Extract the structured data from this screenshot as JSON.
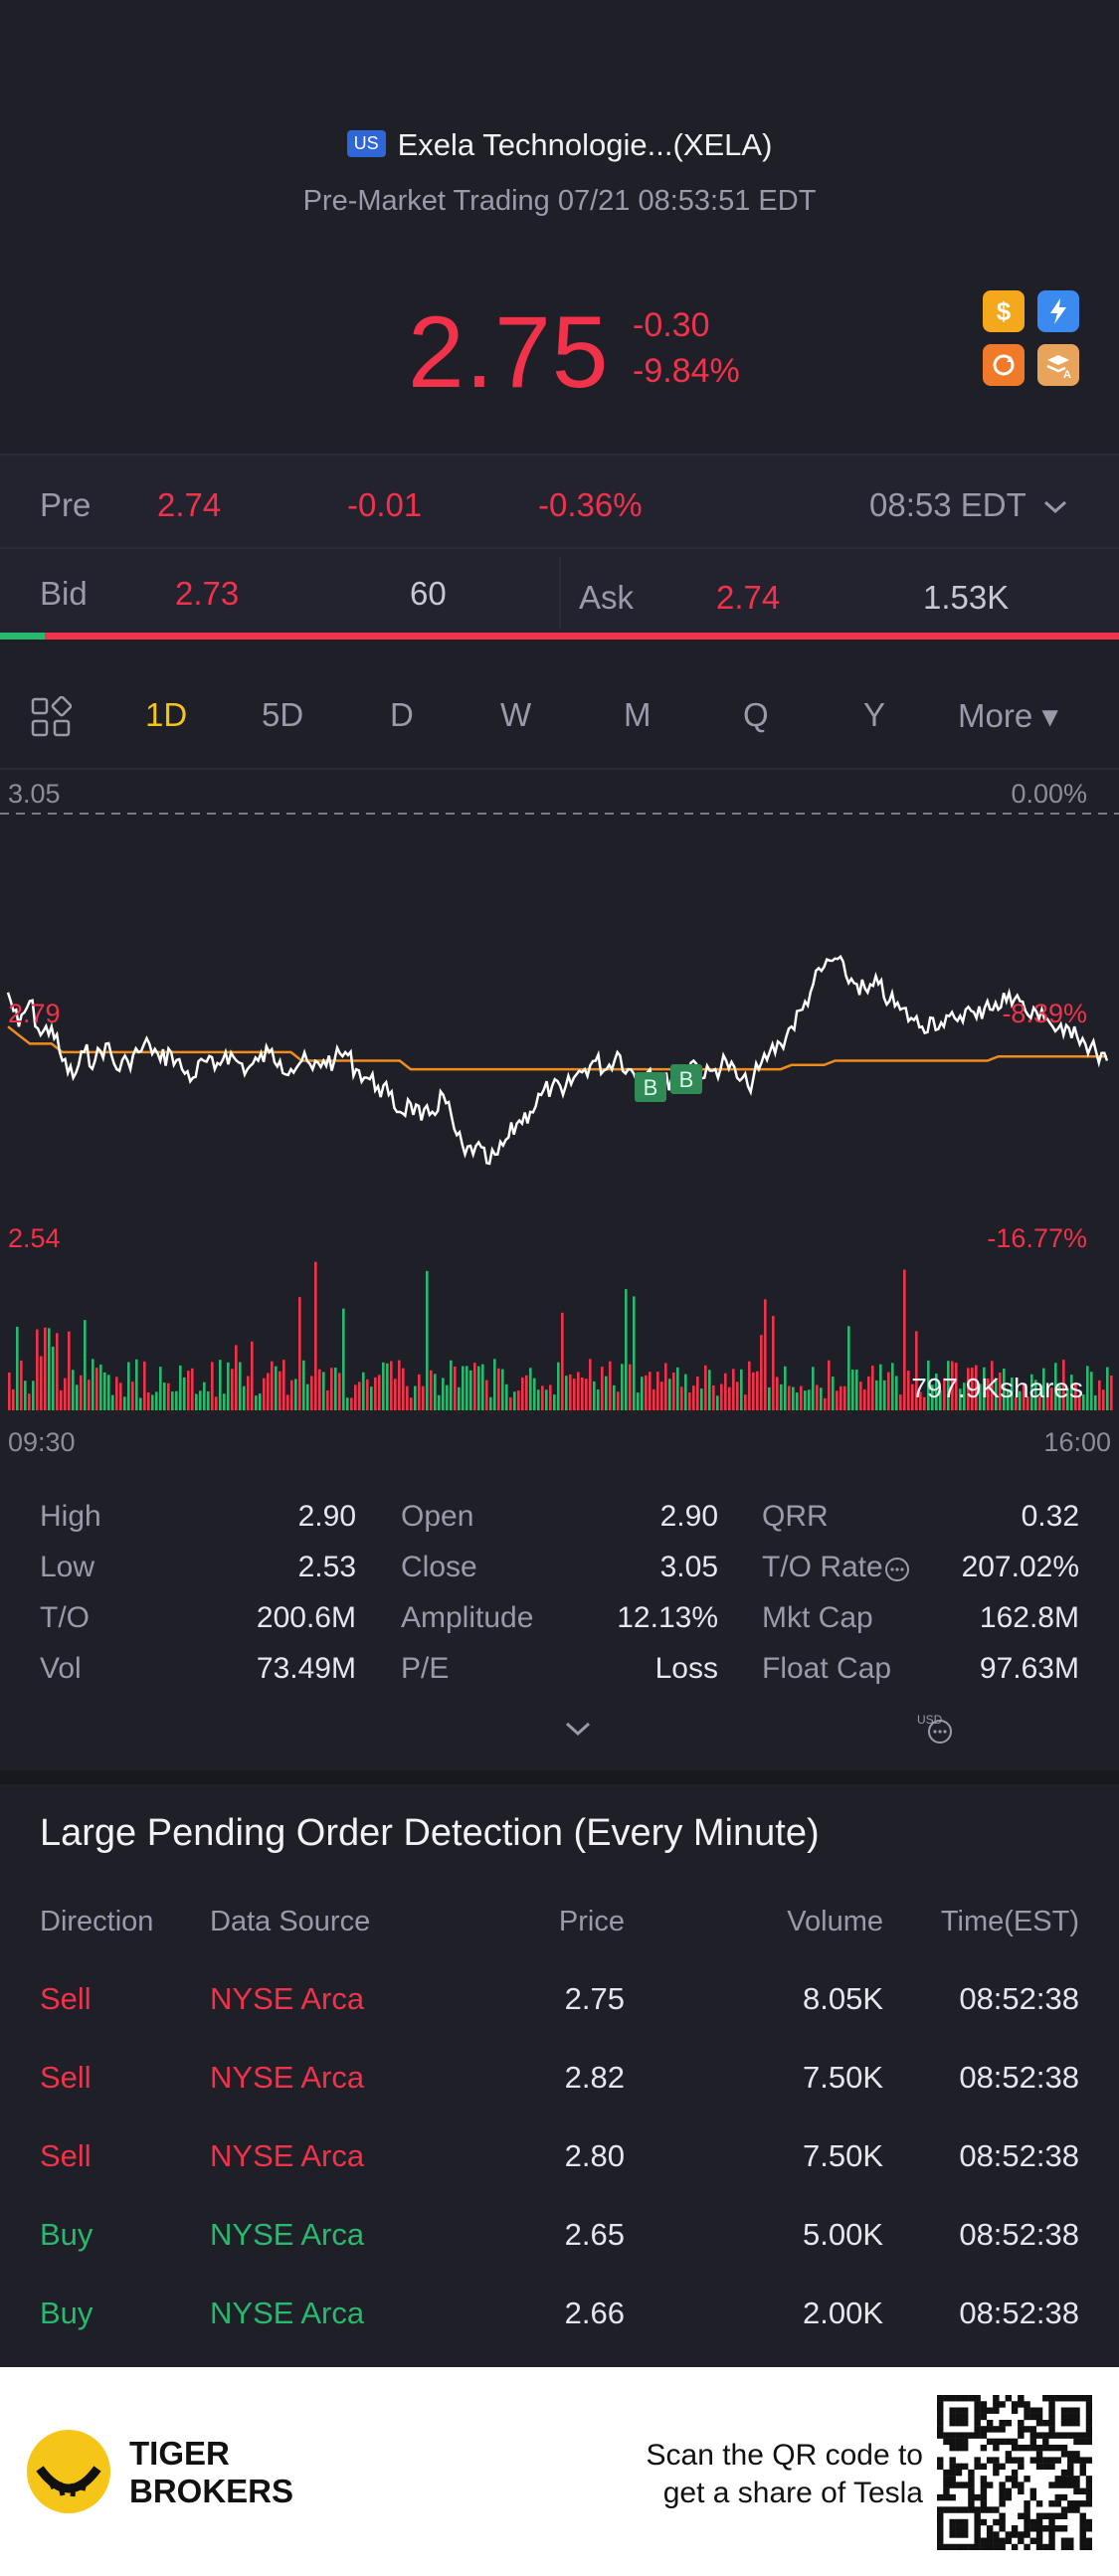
{
  "header": {
    "market_badge": "US",
    "name": "Exela Technologie...(XELA)",
    "session": "Pre-Market Trading 07/21 08:53:51 EDT",
    "price": "2.75",
    "change": "-0.30",
    "change_pct": "-9.84%",
    "icons": [
      "dollar-icon",
      "lightning-icon",
      "sync-icon",
      "layers-a-icon"
    ]
  },
  "pre_row": {
    "label": "Pre",
    "price": "2.74",
    "change": "-0.01",
    "change_pct": "-0.36%",
    "time": "08:53 EDT"
  },
  "bid_ask": {
    "bid_label": "Bid",
    "bid_price": "2.73",
    "bid_size": "60",
    "ask_label": "Ask",
    "ask_price": "2.74",
    "ask_size": "1.53K",
    "bid_ratio": 0.04
  },
  "tabs": [
    "1D",
    "5D",
    "D",
    "W",
    "M",
    "Q",
    "Y",
    "More ▾"
  ],
  "active_tab": "1D",
  "chart": {
    "top_left": "3.05",
    "top_right": "0.00%",
    "mid_left": "2.79",
    "mid_right": "-8.39%",
    "bottom_left": "2.54",
    "bottom_right": "-16.77%",
    "volume_label": "797.9Kshares",
    "start_time": "09:30",
    "end_time": "16:00",
    "markers": [
      "B",
      "B"
    ]
  },
  "chart_data": {
    "type": "line",
    "series": [
      {
        "y": [
          2.84,
          2.8,
          2.83,
          2.79,
          2.8,
          2.76,
          2.74,
          2.77,
          2.76,
          2.78,
          2.75,
          2.76,
          2.77,
          2.78,
          2.76,
          2.77,
          2.75,
          2.74,
          2.76,
          2.75,
          2.77,
          2.76,
          2.75,
          2.76,
          2.77,
          2.76,
          2.75,
          2.76,
          2.75,
          2.76,
          2.76,
          2.77,
          2.75,
          2.74,
          2.73,
          2.72,
          2.7,
          2.71,
          2.69,
          2.7,
          2.72,
          2.68,
          2.65,
          2.66,
          2.64,
          2.65,
          2.67,
          2.69,
          2.7,
          2.72,
          2.73,
          2.72,
          2.74,
          2.75,
          2.76,
          2.75,
          2.77,
          2.75,
          2.74,
          2.75,
          2.73,
          2.74,
          2.75,
          2.76,
          2.74,
          2.75,
          2.76,
          2.74,
          2.73,
          2.75,
          2.77,
          2.78,
          2.8,
          2.82,
          2.85,
          2.87,
          2.88,
          2.86,
          2.85,
          2.84,
          2.85,
          2.83,
          2.82,
          2.81,
          2.8,
          2.81,
          2.8,
          2.81,
          2.82,
          2.81,
          2.83,
          2.82,
          2.84,
          2.83,
          2.81,
          2.82,
          2.8,
          2.79,
          2.8,
          2.78,
          2.77,
          2.76
        ]
      },
      {
        "y": [
          2.8,
          2.79,
          2.78,
          2.78,
          2.78,
          2.77,
          2.77,
          2.77,
          2.77,
          2.77,
          2.77,
          2.77,
          2.77,
          2.77,
          2.77,
          2.77,
          2.77,
          2.77,
          2.77,
          2.77,
          2.77,
          2.77,
          2.77,
          2.77,
          2.77,
          2.77,
          2.77,
          2.76,
          2.76,
          2.76,
          2.76,
          2.76,
          2.76,
          2.76,
          2.76,
          2.76,
          2.76,
          2.75,
          2.75,
          2.75,
          2.75,
          2.75,
          2.75,
          2.75,
          2.75,
          2.75,
          2.75,
          2.75,
          2.75,
          2.75,
          2.75,
          2.75,
          2.75,
          2.75,
          2.75,
          2.75,
          2.75,
          2.75,
          2.75,
          2.75,
          2.75,
          2.75,
          2.75,
          2.75,
          2.75,
          2.75,
          2.75,
          2.75,
          2.75,
          2.75,
          2.75,
          2.75,
          2.755,
          2.755,
          2.755,
          2.755,
          2.76,
          2.76,
          2.76,
          2.76,
          2.76,
          2.76,
          2.76,
          2.76,
          2.76,
          2.76,
          2.76,
          2.76,
          2.76,
          2.76,
          2.76,
          2.765,
          2.765,
          2.765,
          2.765,
          2.765,
          2.765,
          2.765,
          2.765,
          2.765,
          2.765,
          2.765
        ]
      }
    ],
    "ylim": [
      2.54,
      3.05
    ]
  },
  "stats": [
    [
      {
        "label": "High",
        "value": "2.90"
      },
      {
        "label": "Open",
        "value": "2.90"
      },
      {
        "label": "QRR",
        "value": "0.32"
      }
    ],
    [
      {
        "label": "Low",
        "value": "2.53"
      },
      {
        "label": "Close",
        "value": "3.05"
      },
      {
        "label": "T/O Rate",
        "value": "207.02%"
      }
    ],
    [
      {
        "label": "T/O",
        "value": "200.6M"
      },
      {
        "label": "Amplitude",
        "value": "12.13%"
      },
      {
        "label": "Mkt Cap",
        "value": "162.8M"
      }
    ],
    [
      {
        "label": "Vol",
        "value": "73.49M"
      },
      {
        "label": "P/E",
        "value": "Loss"
      },
      {
        "label": "Float Cap",
        "value": "97.63M"
      }
    ]
  ],
  "usd_tag": "USD",
  "orders": {
    "title": "Large Pending Order Detection (Every Minute)",
    "headers": [
      "Direction",
      "Data Source",
      "Price",
      "Volume",
      "Time(EST)"
    ],
    "rows": [
      {
        "dir": "Sell",
        "source": "NYSE Arca",
        "price": "2.75",
        "volume": "8.05K",
        "time": "08:52:38",
        "color": "#f2324a"
      },
      {
        "dir": "Sell",
        "source": "NYSE Arca",
        "price": "2.82",
        "volume": "7.50K",
        "time": "08:52:38",
        "color": "#f2324a"
      },
      {
        "dir": "Sell",
        "source": "NYSE Arca",
        "price": "2.80",
        "volume": "7.50K",
        "time": "08:52:38",
        "color": "#f2324a"
      },
      {
        "dir": "Buy",
        "source": "NYSE Arca",
        "price": "2.65",
        "volume": "5.00K",
        "time": "08:52:38",
        "color": "#27b96f"
      },
      {
        "dir": "Buy",
        "source": "NYSE Arca",
        "price": "2.66",
        "volume": "2.00K",
        "time": "08:52:38",
        "color": "#27b96f"
      }
    ]
  },
  "footer": {
    "brand_line1": "TIGER",
    "brand_line2": "BROKERS",
    "cta_line1": "Scan the QR code to",
    "cta_line2": "get a share of Tesla"
  },
  "colors": {
    "up": "#27b96f",
    "down": "#f2324a",
    "active_tab": "#f5c518",
    "avg_line": "#f08c1e",
    "background": "#1f1f27"
  }
}
